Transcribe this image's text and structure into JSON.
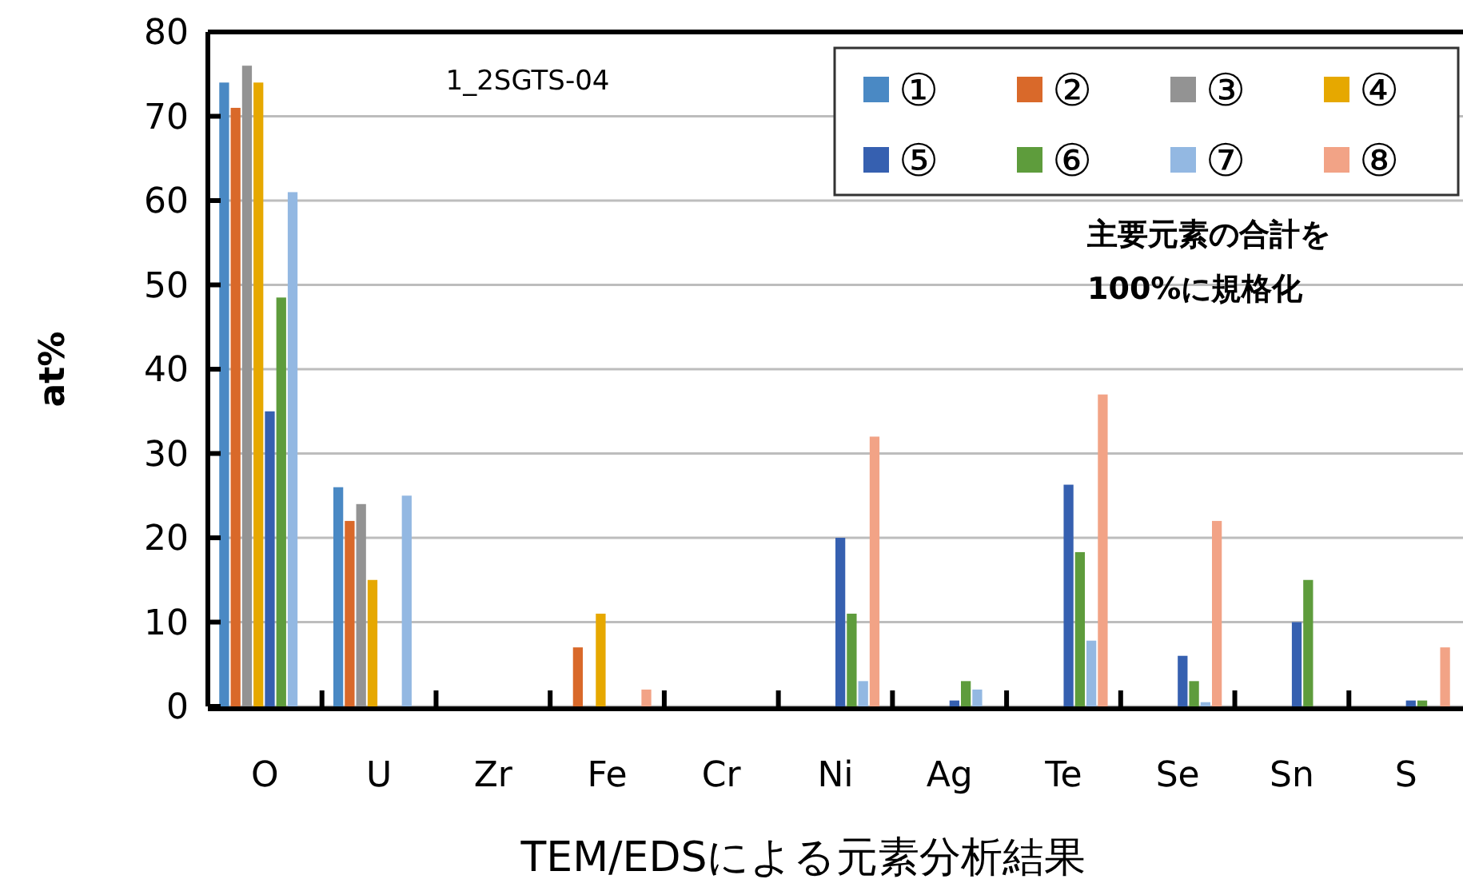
{
  "chart_data": {
    "type": "bar",
    "xlabel": "TEM/EDSによる元素分析結果",
    "ylabel": "at%",
    "categories": [
      "O",
      "U",
      "Zr",
      "Fe",
      "Cr",
      "Ni",
      "Ag",
      "Te",
      "Se",
      "Sn",
      "S"
    ],
    "series": [
      {
        "name": "①",
        "color": "#4a89c4",
        "values": [
          74,
          26,
          null,
          null,
          null,
          null,
          null,
          null,
          null,
          null,
          null
        ]
      },
      {
        "name": "②",
        "color": "#d9692a",
        "values": [
          71,
          22,
          null,
          7,
          null,
          null,
          null,
          null,
          null,
          null,
          null
        ]
      },
      {
        "name": "③",
        "color": "#939393",
        "values": [
          76,
          24,
          null,
          null,
          null,
          null,
          null,
          null,
          null,
          null,
          null
        ]
      },
      {
        "name": "④",
        "color": "#e6a800",
        "values": [
          74,
          15,
          null,
          11,
          null,
          null,
          null,
          null,
          null,
          null,
          null
        ]
      },
      {
        "name": "⑤",
        "color": "#3660b0",
        "values": [
          35,
          null,
          null,
          null,
          null,
          20,
          0.7,
          26.3,
          6,
          10,
          0.7
        ]
      },
      {
        "name": "⑥",
        "color": "#5e9c3c",
        "values": [
          48.5,
          null,
          null,
          null,
          null,
          11,
          3,
          18.3,
          3,
          15,
          0.7
        ]
      },
      {
        "name": "⑦",
        "color": "#93b8e2",
        "values": [
          61,
          25,
          null,
          null,
          null,
          3,
          2,
          7.8,
          0.5,
          null,
          null
        ]
      },
      {
        "name": "⑧",
        "color": "#f2a386",
        "values": [
          null,
          null,
          null,
          2,
          null,
          32,
          null,
          37,
          22,
          null,
          7
        ]
      }
    ],
    "ylim": [
      0,
      80
    ],
    "yticks": [
      0,
      10,
      20,
      30,
      40,
      50,
      60,
      70,
      80
    ],
    "grid": "y",
    "legend": "top right",
    "annotations": [
      "1_2SGTS-04",
      "主要元素の合計を",
      "100%に規格化"
    ]
  }
}
